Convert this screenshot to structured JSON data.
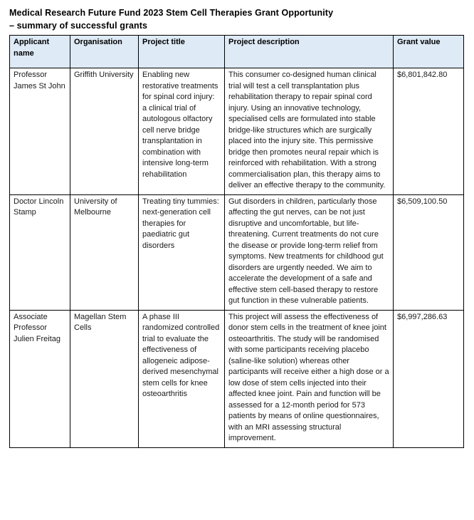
{
  "document": {
    "title_line1": "Medical Research Future Fund 2023 Stem Cell Therapies Grant Opportunity",
    "title_line2": "– summary of successful grants"
  },
  "colors": {
    "header_background": "#deeaf6",
    "table_border": "#000000",
    "text": "#1a1a1a"
  },
  "table": {
    "headers": [
      "Applicant name",
      "Organisation",
      "Project title",
      "Project description",
      "Grant value"
    ],
    "rows": [
      {
        "applicant": "Professor James St John",
        "organisation": "Griffith University",
        "project_title": "Enabling new restorative treatments for spinal cord injury: a clinical trial of autologous olfactory cell nerve bridge transplantation in combination with intensive long-term rehabilitation",
        "description": "This consumer co-designed human clinical trial will test a cell transplantation plus rehabilitation therapy to repair spinal cord injury. Using an innovative technology, specialised cells are formulated into stable bridge-like structures which are surgically placed into the injury site. This permissive bridge then promotes neural repair which is reinforced with rehabilitation. With a strong commercialisation plan, this therapy aims to deliver an effective therapy to the community.",
        "grant_value": "$6,801,842.80"
      },
      {
        "applicant": "Doctor Lincoln Stamp",
        "organisation": "University of Melbourne",
        "project_title": "Treating tiny tummies: next-generation cell therapies for paediatric gut disorders",
        "description": "Gut disorders in children, particularly those affecting the gut nerves, can be not just disruptive and uncomfortable, but life-threatening. Current treatments do not cure the disease or provide long-term relief from symptoms. New treatments for childhood gut disorders are urgently needed. We aim to accelerate the development of a safe and effective stem cell-based therapy to restore gut function in these vulnerable patients.",
        "grant_value": "$6,509,100.50"
      },
      {
        "applicant": "Associate Professor Julien Freitag",
        "organisation": "Magellan Stem Cells",
        "project_title": "A phase III randomized controlled trial to evaluate the effectiveness of allogeneic adipose-derived mesenchymal stem cells for knee osteoarthritis",
        "description": "This project will assess the effectiveness of donor stem cells in the treatment of knee joint osteoarthritis. The study will be randomised with some participants receiving placebo (saline-like solution) whereas other participants will receive either a high dose or a low dose of stem cells injected into their affected knee joint. Pain and function will be assessed for a 12-month period for 573 patients by means of online questionnaires, with an MRI assessing structural improvement.",
        "grant_value": "$6,997,286.63"
      }
    ]
  }
}
